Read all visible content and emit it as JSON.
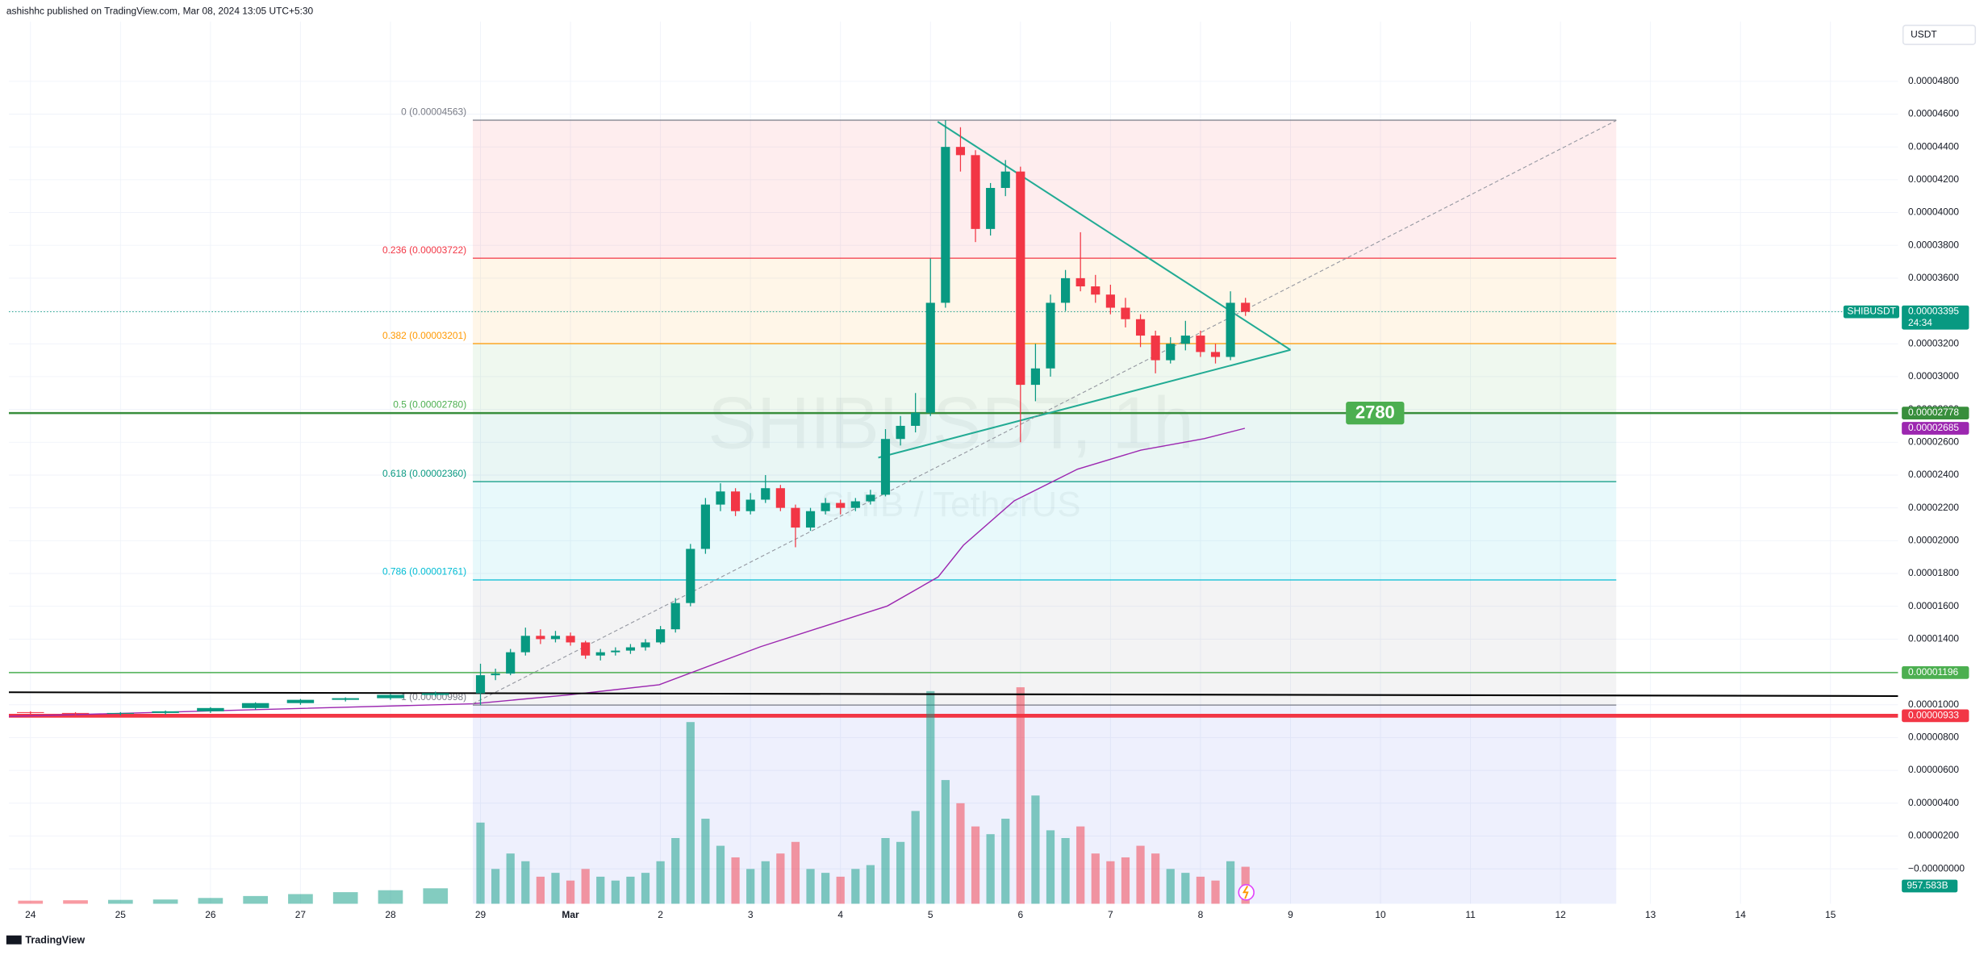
{
  "chart_data": {
    "type": "candlestick",
    "header": "ashishhc published on TradingView.com, Mar 08, 2024 13:05 UTC+5:30",
    "footer": "TradingView",
    "currency": "USDT",
    "watermark_symbol": "SHIBUSDT, 1h",
    "watermark_desc": "SHIB / TetherUS",
    "xlim": [
      -0.24,
      20.75
    ],
    "ylim": [
      -2.13e-06,
      5.164e-05
    ],
    "grid": true,
    "up_color": "#089981",
    "down_color": "#f23645",
    "xticks": [
      {
        "value": 0,
        "label": "24"
      },
      {
        "value": 1,
        "label": "25"
      },
      {
        "value": 2,
        "label": "26"
      },
      {
        "value": 3,
        "label": "27"
      },
      {
        "value": 4,
        "label": "28"
      },
      {
        "value": 5,
        "label": "29"
      },
      {
        "value": 6,
        "label": "Mar"
      },
      {
        "value": 7,
        "label": "2"
      },
      {
        "value": 8,
        "label": "3"
      },
      {
        "value": 9,
        "label": "4"
      },
      {
        "value": 10,
        "label": "5"
      },
      {
        "value": 11,
        "label": "6"
      },
      {
        "value": 12,
        "label": "7"
      },
      {
        "value": 13,
        "label": "8"
      },
      {
        "value": 14,
        "label": "9"
      },
      {
        "value": 15,
        "label": "10"
      },
      {
        "value": 16,
        "label": "11"
      },
      {
        "value": 17,
        "label": "12"
      },
      {
        "value": 18,
        "label": "13"
      },
      {
        "value": 19,
        "label": "14"
      },
      {
        "value": 20,
        "label": "15"
      }
    ],
    "yticks": [
      {
        "value": 0,
        "label": "−0.00000000"
      },
      {
        "value": 2e-06,
        "label": "0.00000200"
      },
      {
        "value": 4e-06,
        "label": "0.00000400"
      },
      {
        "value": 6e-06,
        "label": "0.00000600"
      },
      {
        "value": 8e-06,
        "label": "0.00000800"
      },
      {
        "value": 1e-05,
        "label": "0.00001000"
      },
      {
        "value": 1.2e-05,
        "label": "0.00001200"
      },
      {
        "value": 1.4e-05,
        "label": "0.00001400"
      },
      {
        "value": 1.6e-05,
        "label": "0.00001600"
      },
      {
        "value": 1.8e-05,
        "label": "0.00001800"
      },
      {
        "value": 2e-05,
        "label": "0.00002000"
      },
      {
        "value": 2.2e-05,
        "label": "0.00002200"
      },
      {
        "value": 2.4e-05,
        "label": "0.00002400"
      },
      {
        "value": 2.6e-05,
        "label": "0.00002600"
      },
      {
        "value": 2.8e-05,
        "label": "0.00002800"
      },
      {
        "value": 3e-05,
        "label": "0.00003000"
      },
      {
        "value": 3.2e-05,
        "label": "0.00003200"
      },
      {
        "value": 3.4e-05,
        "label": "0.00003400"
      },
      {
        "value": 3.6e-05,
        "label": "0.00003600"
      },
      {
        "value": 3.8e-05,
        "label": "0.00003800"
      },
      {
        "value": 4e-05,
        "label": "0.00004000"
      },
      {
        "value": 4.2e-05,
        "label": "0.00004200"
      },
      {
        "value": 4.4e-05,
        "label": "0.00004400"
      },
      {
        "value": 4.6e-05,
        "label": "0.00004600"
      },
      {
        "value": 4.8e-05,
        "label": "0.00004800"
      }
    ],
    "candles": {
      "x": [
        0,
        0.5,
        1,
        1.5,
        2,
        2.5,
        3,
        3.5,
        4,
        4.5,
        5,
        5.1667,
        5.3333,
        5.5,
        5.6667,
        5.8333,
        6,
        6.1667,
        6.3333,
        6.5,
        6.6667,
        6.8333,
        7,
        7.1667,
        7.3333,
        7.5,
        7.6667,
        7.8333,
        8,
        8.1667,
        8.3333,
        8.5,
        8.6667,
        8.8333,
        9,
        9.1667,
        9.3333,
        9.5,
        9.6667,
        9.8333,
        10,
        10.1667,
        10.3333,
        10.5,
        10.6667,
        10.8333,
        11,
        11.1667,
        11.3333,
        11.5,
        11.6667,
        11.8333,
        12,
        12.1667,
        12.3333,
        12.5,
        12.6667,
        12.8333,
        13,
        13.1667,
        13.3333,
        13.5
      ],
      "open": [
        9.55e-06,
        9.5e-06,
        9.45e-06,
        9.5e-06,
        9.6e-06,
        9.8e-06,
        1.01e-05,
        1.03e-05,
        1.04e-05,
        1.06e-05,
        1.07e-05,
        1.18e-05,
        1.19e-05,
        1.32e-05,
        1.42e-05,
        1.4e-05,
        1.42e-05,
        1.38e-05,
        1.3e-05,
        1.32e-05,
        1.33e-05,
        1.35e-05,
        1.38e-05,
        1.46e-05,
        1.62e-05,
        1.95e-05,
        2.22e-05,
        2.3e-05,
        2.18e-05,
        2.25e-05,
        2.32e-05,
        2.2e-05,
        2.08e-05,
        2.18e-05,
        2.23e-05,
        2.2e-05,
        2.24e-05,
        2.28e-05,
        2.62e-05,
        2.7e-05,
        2.78e-05,
        3.45e-05,
        4.4e-05,
        4.35e-05,
        3.9e-05,
        4.15e-05,
        4.25e-05,
        2.95e-05,
        3.05e-05,
        3.45e-05,
        3.6e-05,
        3.55e-05,
        3.5e-05,
        3.42e-05,
        3.35e-05,
        3.25e-05,
        3.1e-05,
        3.2e-05,
        3.25e-05,
        3.15e-05,
        3.12e-05,
        3.45e-05
      ],
      "high": [
        9.6e-06,
        9.55e-06,
        9.55e-06,
        9.65e-06,
        9.85e-06,
        1.015e-05,
        1.035e-05,
        1.045e-05,
        1.065e-05,
        1.08e-05,
        1.25e-05,
        1.22e-05,
        1.34e-05,
        1.47e-05,
        1.46e-05,
        1.45e-05,
        1.44e-05,
        1.39e-05,
        1.34e-05,
        1.35e-05,
        1.37e-05,
        1.4e-05,
        1.48e-05,
        1.65e-05,
        1.98e-05,
        2.26e-05,
        2.35e-05,
        2.32e-05,
        2.29e-05,
        2.4e-05,
        2.34e-05,
        2.22e-05,
        2.2e-05,
        2.26e-05,
        2.25e-05,
        2.26e-05,
        2.31e-05,
        2.68e-05,
        2.76e-05,
        2.9e-05,
        3.72e-05,
        4.563e-05,
        4.52e-05,
        4.38e-05,
        4.18e-05,
        4.32e-05,
        4.28e-05,
        3.2e-05,
        3.5e-05,
        3.65e-05,
        3.88e-05,
        3.62e-05,
        3.56e-05,
        3.48e-05,
        3.38e-05,
        3.28e-05,
        3.24e-05,
        3.34e-05,
        3.28e-05,
        3.2e-05,
        3.52e-05,
        3.48e-05
      ],
      "low": [
        9.4e-06,
        9.35e-06,
        9.35e-06,
        9.4e-06,
        9.5e-06,
        9.7e-06,
        1e-05,
        1.02e-05,
        1.03e-05,
        1.05e-05,
        9.98e-06,
        1.15e-05,
        1.18e-05,
        1.3e-05,
        1.37e-05,
        1.38e-05,
        1.36e-05,
        1.28e-05,
        1.27e-05,
        1.3e-05,
        1.31e-05,
        1.33e-05,
        1.37e-05,
        1.44e-05,
        1.6e-05,
        1.92e-05,
        2.18e-05,
        2.15e-05,
        2.16e-05,
        2.23e-05,
        2.18e-05,
        1.96e-05,
        2.06e-05,
        2.16e-05,
        2.16e-05,
        2.18e-05,
        2.22e-05,
        2.27e-05,
        2.58e-05,
        2.66e-05,
        2.76e-05,
        3.42e-05,
        4.25e-05,
        3.82e-05,
        3.86e-05,
        4.1e-05,
        2.6e-05,
        2.85e-05,
        3e-05,
        3.4e-05,
        3.52e-05,
        3.45e-05,
        3.38e-05,
        3.3e-05,
        3.18e-05,
        3.02e-05,
        3.08e-05,
        3.16e-05,
        3.12e-05,
        3.08e-05,
        3.1e-05,
        3.37e-05
      ],
      "close": [
        9.5e-06,
        9.45e-06,
        9.5e-06,
        9.6e-06,
        9.8e-06,
        1.01e-05,
        1.03e-05,
        1.04e-05,
        1.06e-05,
        1.07e-05,
        1.18e-05,
        1.19e-05,
        1.32e-05,
        1.42e-05,
        1.4e-05,
        1.42e-05,
        1.38e-05,
        1.3e-05,
        1.32e-05,
        1.33e-05,
        1.35e-05,
        1.38e-05,
        1.46e-05,
        1.62e-05,
        1.95e-05,
        2.22e-05,
        2.3e-05,
        2.18e-05,
        2.25e-05,
        2.32e-05,
        2.2e-05,
        2.08e-05,
        2.18e-05,
        2.23e-05,
        2.2e-05,
        2.24e-05,
        2.28e-05,
        2.62e-05,
        2.7e-05,
        2.78e-05,
        3.45e-05,
        4.4e-05,
        4.35e-05,
        3.9e-05,
        4.15e-05,
        4.25e-05,
        2.95e-05,
        3.05e-05,
        3.45e-05,
        3.6e-05,
        3.55e-05,
        3.5e-05,
        3.42e-05,
        3.35e-05,
        3.25e-05,
        3.1e-05,
        3.2e-05,
        3.25e-05,
        3.15e-05,
        3.12e-05,
        3.45e-05,
        3.395e-05
      ]
    },
    "volume": {
      "vlim": [
        0,
        6000
      ],
      "values": [
        80,
        90,
        100,
        110,
        150,
        200,
        250,
        300,
        350,
        400,
        2100,
        900,
        1300,
        1100,
        700,
        800,
        600,
        900,
        700,
        600,
        700,
        800,
        1100,
        1700,
        4700,
        2200,
        1500,
        1200,
        900,
        1100,
        1300,
        1600,
        900,
        800,
        700,
        900,
        1000,
        1700,
        1600,
        2400,
        5500,
        3200,
        2600,
        2000,
        1800,
        2200,
        5600,
        2800,
        1900,
        1700,
        2000,
        1300,
        1100,
        1200,
        1500,
        1300,
        900,
        800,
        700,
        600,
        1100,
        957.583
      ],
      "last_label": "957.583B"
    },
    "ma": {
      "color": "#9c27b0",
      "x": [
        -0.24,
        4.915,
        6.0,
        6.986,
        8.113,
        9.521,
        10.085,
        10.366,
        10.93,
        11.634,
        12.338,
        13.042,
        13.493
      ],
      "values": [
        9.29e-06,
        1.006e-05,
        1.061e-05,
        1.122e-05,
        1.354e-05,
        1.602e-05,
        1.779e-05,
        1.972e-05,
        2.243e-05,
        2.436e-05,
        2.552e-05,
        2.622e-05,
        2.685e-05
      ]
    },
    "fib_x": [
      4.915,
      17.62
    ],
    "fib": [
      {
        "label": "0 (0.00004563)",
        "value": 4.563e-05,
        "color": "#787b86"
      },
      {
        "label": "0.236 (0.00003722)",
        "value": 3.722e-05,
        "color": "#f23645"
      },
      {
        "label": "0.382 (0.00003201)",
        "value": 3.201e-05,
        "color": "#ff9800"
      },
      {
        "label": "0.5 (0.00002780)",
        "value": 2.78e-05,
        "color": "#4caf50"
      },
      {
        "label": "0.618 (0.00002360)",
        "value": 2.36e-05,
        "color": "#089981"
      },
      {
        "label": "0.786 (0.00001761)",
        "value": 1.761e-05,
        "color": "#00bcd4"
      },
      {
        "label": "1 (0.00000998)",
        "value": 9.98e-06,
        "color": "#787b86"
      }
    ],
    "trendlines": [
      {
        "x": [
          10.08,
          14.0
        ],
        "values": [
          4.554e-05,
          3.163e-05
        ],
        "color": "#22ab94",
        "style": "solid"
      },
      {
        "x": [
          9.42,
          14.0
        ],
        "values": [
          2.506e-05,
          3.163e-05
        ],
        "color": "#22ab94",
        "style": "solid"
      },
      {
        "x": [
          4.915,
          17.62
        ],
        "values": [
          1.006e-05,
          4.561e-05
        ],
        "color": "#9598a1",
        "style": "dashed"
      },
      {
        "x": [
          -0.24,
          20.75
        ],
        "values": [
          1.076e-05,
          1.053e-05
        ],
        "color": "#000000",
        "style": "solid"
      }
    ],
    "hlines": [
      {
        "value": 2.778e-05,
        "color": "#388e3c",
        "style": "thick"
      },
      {
        "value": 1.196e-05,
        "color": "#4caf50",
        "style": "thin"
      },
      {
        "value": 9.33e-06,
        "color": "#f23645",
        "style": "heavy"
      }
    ],
    "annotation": {
      "text": "2780",
      "x": 14.94,
      "y": 2.778e-05,
      "color": "#4caf50"
    },
    "price_badges": [
      {
        "value": 2.778e-05,
        "label": "0.00002778",
        "color": "#388e3c"
      },
      {
        "value": 2.685e-05,
        "label": "0.00002685",
        "color": "#9c27b0"
      },
      {
        "value": 1.196e-05,
        "label": "0.00001196",
        "color": "#4caf50"
      },
      {
        "value": 9.33e-06,
        "label": "0.00000933",
        "color": "#f23645"
      }
    ],
    "current": {
      "symbol": "SHIBUSDT",
      "value": 3.395e-05,
      "label": "0.00003395",
      "countdown": "24:34",
      "color": "#089981"
    }
  }
}
